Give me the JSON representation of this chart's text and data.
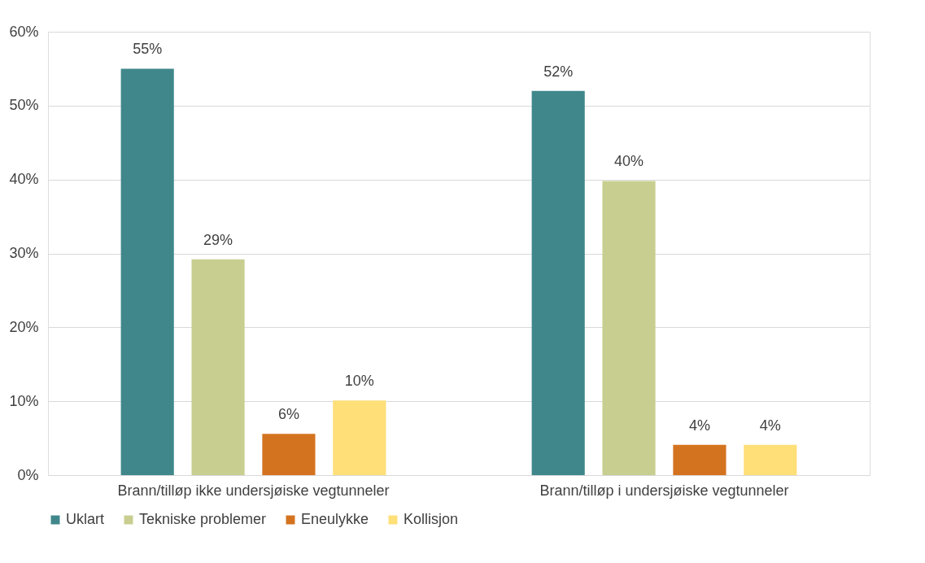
{
  "chart_data": {
    "type": "bar",
    "categories": [
      "Brann/tilløp ikke undersjøiske vegtunneler",
      "Brann/tilløp i undersjøiske vegtunneler"
    ],
    "series": [
      {
        "name": "Uklart",
        "color": "#40878b",
        "values": [
          55,
          52
        ],
        "value_labels": [
          "55%",
          "52%"
        ]
      },
      {
        "name": "Tekniske problemer",
        "color": "#c8ce8f",
        "values": [
          29.2,
          39.8
        ],
        "value_labels": [
          "29%",
          "40%"
        ]
      },
      {
        "name": "Eneulykke",
        "color": "#d4731f",
        "values": [
          5.6,
          4.1
        ],
        "value_labels": [
          "6%",
          "4%"
        ]
      },
      {
        "name": "Kollisjon",
        "color": "#fedf78",
        "values": [
          10.1,
          4.1
        ],
        "value_labels": [
          "10%",
          "4%"
        ]
      }
    ],
    "ylim": [
      0,
      60
    ],
    "yticks": [
      {
        "value": 0,
        "label": "0%"
      },
      {
        "value": 10,
        "label": "10%"
      },
      {
        "value": 20,
        "label": "20%"
      },
      {
        "value": 30,
        "label": "30%"
      },
      {
        "value": 40,
        "label": "40%"
      },
      {
        "value": 50,
        "label": "50%"
      },
      {
        "value": 60,
        "label": "60%"
      }
    ],
    "grid": "y",
    "legend": "bottom"
  }
}
